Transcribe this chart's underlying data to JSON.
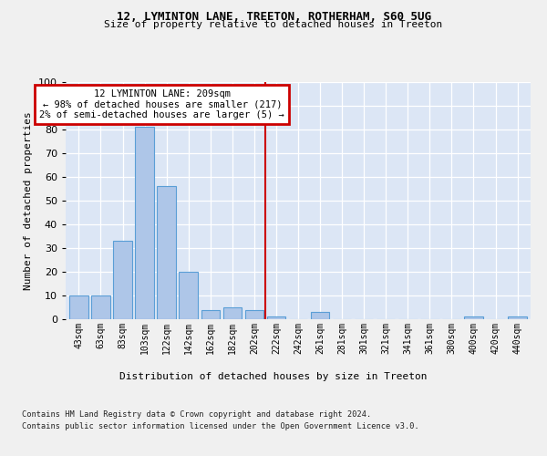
{
  "title1": "12, LYMINTON LANE, TREETON, ROTHERHAM, S60 5UG",
  "title2": "Size of property relative to detached houses in Treeton",
  "xlabel": "Distribution of detached houses by size in Treeton",
  "ylabel": "Number of detached properties",
  "footnote1": "Contains HM Land Registry data © Crown copyright and database right 2024.",
  "footnote2": "Contains public sector information licensed under the Open Government Licence v3.0.",
  "categories": [
    "43sqm",
    "63sqm",
    "83sqm",
    "103sqm",
    "122sqm",
    "142sqm",
    "162sqm",
    "182sqm",
    "202sqm",
    "222sqm",
    "242sqm",
    "261sqm",
    "281sqm",
    "301sqm",
    "321sqm",
    "341sqm",
    "361sqm",
    "380sqm",
    "400sqm",
    "420sqm",
    "440sqm"
  ],
  "values": [
    10,
    10,
    33,
    81,
    56,
    20,
    4,
    5,
    4,
    1,
    0,
    3,
    0,
    0,
    0,
    0,
    0,
    0,
    1,
    0,
    1
  ],
  "bar_color": "#aec6e8",
  "bar_edge_color": "#5a9ed6",
  "vline_x": 8.5,
  "vline_color": "#cc0000",
  "annotation_title": "12 LYMINTON LANE: 209sqm",
  "annotation_line1": "← 98% of detached houses are smaller (217)",
  "annotation_line2": "2% of semi-detached houses are larger (5) →",
  "annotation_box_color": "#cc0000",
  "ylim": [
    0,
    100
  ],
  "yticks": [
    0,
    10,
    20,
    30,
    40,
    50,
    60,
    70,
    80,
    90,
    100
  ],
  "plot_bg_color": "#dce6f5",
  "fig_bg_color": "#f0f0f0"
}
